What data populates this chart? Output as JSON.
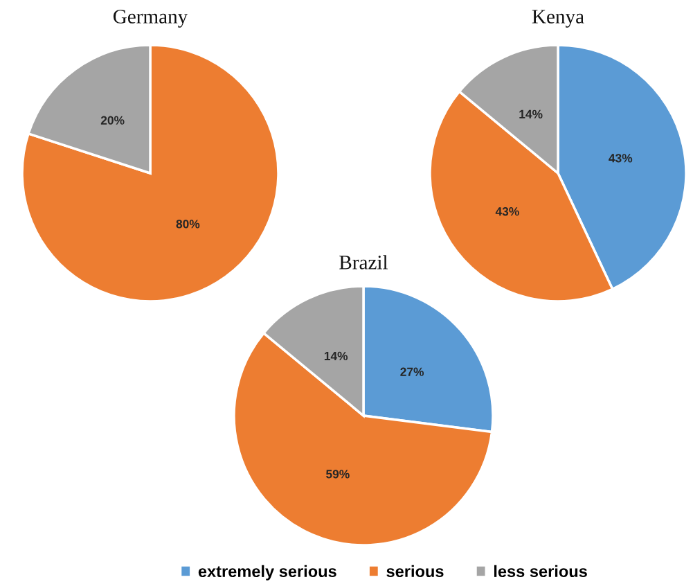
{
  "chart_data": [
    {
      "type": "pie",
      "title": "Germany",
      "categories": [
        null,
        null
      ],
      "values": [
        80,
        20
      ],
      "colors": [
        "#ed7d31",
        "#a5a5a5"
      ],
      "value_labels": [
        "80%",
        "20%"
      ]
    },
    {
      "type": "pie",
      "title": "Kenya",
      "categories": [
        null,
        null,
        null
      ],
      "values": [
        43,
        43,
        14
      ],
      "colors": [
        "#5b9bd5",
        "#ed7d31",
        "#a5a5a5"
      ],
      "value_labels": [
        "43%",
        "43%",
        "14%"
      ]
    },
    {
      "type": "pie",
      "title": "Brazil",
      "categories": [
        "extremely serious",
        "serious",
        "less serious"
      ],
      "values": [
        27,
        59,
        14
      ],
      "colors": [
        "#5b9bd5",
        "#ed7d31",
        "#a5a5a5"
      ],
      "value_labels": [
        "27%",
        "59%",
        "14%"
      ],
      "legend": "bottom"
    }
  ]
}
